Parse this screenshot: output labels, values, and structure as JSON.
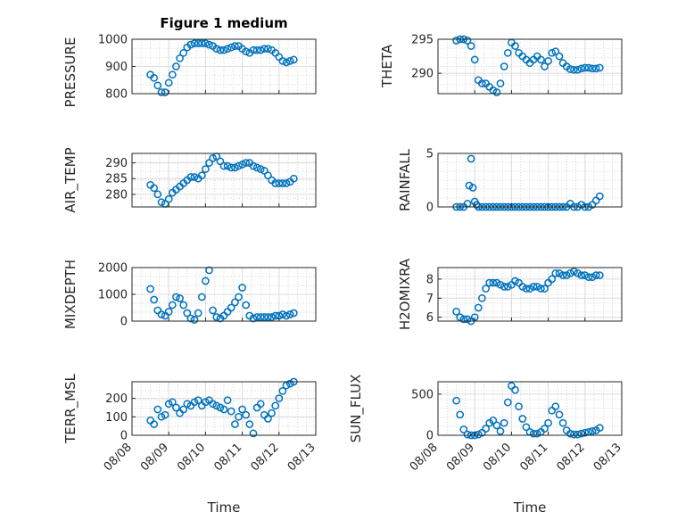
{
  "figure": {
    "title": "Figure 1 medium",
    "xlabel": "Time",
    "x_tick_labels": [
      "08/08",
      "08/09",
      "08/10",
      "08/11",
      "08/12",
      "08/13"
    ],
    "marker_color": "#0072BD"
  },
  "chart_data": [
    {
      "type": "scatter",
      "ylabel": "PRESSURE",
      "ylim": [
        800,
        1000
      ],
      "yticks": [
        800,
        900,
        1000
      ],
      "xlim": [
        0,
        5
      ],
      "grid": true,
      "x": [
        0.5,
        0.6,
        0.7,
        0.8,
        0.9,
        1.0,
        1.1,
        1.2,
        1.3,
        1.4,
        1.5,
        1.6,
        1.7,
        1.8,
        1.9,
        2.0,
        2.1,
        2.2,
        2.3,
        2.4,
        2.5,
        2.6,
        2.7,
        2.8,
        2.9,
        3.0,
        3.1,
        3.2,
        3.3,
        3.4,
        3.5,
        3.6,
        3.7,
        3.8,
        3.9,
        4.0,
        4.1,
        4.2,
        4.3,
        4.4
      ],
      "y": [
        870,
        858,
        830,
        805,
        805,
        840,
        870,
        900,
        930,
        950,
        970,
        980,
        985,
        985,
        985,
        985,
        980,
        975,
        965,
        960,
        960,
        965,
        970,
        975,
        975,
        965,
        955,
        950,
        960,
        960,
        960,
        965,
        965,
        960,
        950,
        935,
        920,
        915,
        920,
        925
      ]
    },
    {
      "type": "scatter",
      "ylabel": "THETA",
      "ylim": [
        287,
        295
      ],
      "yticks": [
        290,
        295
      ],
      "xlim": [
        0,
        5
      ],
      "grid": true,
      "x": [
        0.5,
        0.6,
        0.7,
        0.8,
        0.9,
        1.0,
        1.1,
        1.2,
        1.3,
        1.4,
        1.5,
        1.6,
        1.7,
        1.8,
        1.9,
        2.0,
        2.1,
        2.2,
        2.3,
        2.4,
        2.5,
        2.6,
        2.7,
        2.8,
        2.9,
        3.0,
        3.1,
        3.2,
        3.3,
        3.4,
        3.5,
        3.6,
        3.7,
        3.8,
        3.9,
        4.0,
        4.1,
        4.2,
        4.3,
        4.4
      ],
      "y": [
        294.8,
        295.0,
        295.0,
        294.8,
        294.0,
        292.0,
        289.0,
        288.5,
        288.5,
        288.0,
        287.5,
        287.2,
        288.5,
        291.0,
        293.0,
        294.5,
        294.0,
        293.0,
        292.5,
        292.0,
        291.5,
        292.0,
        292.5,
        292.0,
        291.0,
        291.8,
        293.0,
        293.2,
        292.5,
        291.5,
        291.0,
        290.6,
        290.5,
        290.5,
        290.7,
        290.8,
        290.8,
        290.7,
        290.7,
        290.8
      ]
    },
    {
      "type": "scatter",
      "ylabel": "AIR_TEMP",
      "ylim": [
        276,
        293
      ],
      "yticks": [
        280,
        285,
        290
      ],
      "xlim": [
        0,
        5
      ],
      "grid": true,
      "x": [
        0.5,
        0.6,
        0.7,
        0.8,
        0.9,
        1.0,
        1.1,
        1.2,
        1.3,
        1.4,
        1.5,
        1.6,
        1.7,
        1.8,
        1.9,
        2.0,
        2.1,
        2.2,
        2.3,
        2.4,
        2.5,
        2.6,
        2.7,
        2.8,
        2.9,
        3.0,
        3.1,
        3.2,
        3.3,
        3.4,
        3.5,
        3.6,
        3.7,
        3.8,
        3.9,
        4.0,
        4.1,
        4.2,
        4.3,
        4.4
      ],
      "y": [
        283.0,
        282.0,
        280.0,
        277.5,
        277.0,
        278.5,
        280.5,
        281.5,
        282.5,
        283.5,
        284.5,
        285.5,
        285.5,
        285.0,
        286.0,
        288.0,
        290.0,
        291.5,
        292.0,
        290.5,
        289.0,
        289.0,
        288.5,
        288.5,
        289.0,
        289.5,
        290.0,
        290.0,
        289.0,
        288.5,
        288.0,
        287.5,
        286.0,
        284.5,
        283.5,
        283.5,
        283.5,
        283.5,
        284.0,
        285.0
      ]
    },
    {
      "type": "scatter",
      "ylabel": "RAINFALL",
      "ylim": [
        0,
        5
      ],
      "yticks": [
        0,
        5
      ],
      "xlim": [
        0,
        5
      ],
      "grid": true,
      "x": [
        0.5,
        0.6,
        0.7,
        0.8,
        0.85,
        0.9,
        0.95,
        1.0,
        1.05,
        1.1,
        1.2,
        1.3,
        1.4,
        1.5,
        1.6,
        1.7,
        1.8,
        1.9,
        2.0,
        2.1,
        2.2,
        2.3,
        2.4,
        2.5,
        2.6,
        2.7,
        2.8,
        2.9,
        3.0,
        3.1,
        3.2,
        3.3,
        3.4,
        3.5,
        3.6,
        3.7,
        3.8,
        3.9,
        4.0,
        4.1,
        4.2,
        4.3,
        4.4
      ],
      "y": [
        0.0,
        0.0,
        0.0,
        0.3,
        2.0,
        4.5,
        1.8,
        0.5,
        0.2,
        0.0,
        0.0,
        0.0,
        0.0,
        0.0,
        0.0,
        0.0,
        0.0,
        0.0,
        0.0,
        0.0,
        0.0,
        0.0,
        0.0,
        0.0,
        0.0,
        0.0,
        0.0,
        0.0,
        0.0,
        0.0,
        0.0,
        0.0,
        0.0,
        0.0,
        0.3,
        0.0,
        0.0,
        0.2,
        0.0,
        0.0,
        0.2,
        0.6,
        1.0
      ]
    },
    {
      "type": "scatter",
      "ylabel": "MIXDEPTH",
      "ylim": [
        0,
        2000
      ],
      "yticks": [
        0,
        1000,
        2000
      ],
      "xlim": [
        0,
        5
      ],
      "grid": true,
      "x": [
        0.5,
        0.6,
        0.7,
        0.8,
        0.9,
        1.0,
        1.1,
        1.2,
        1.3,
        1.4,
        1.5,
        1.6,
        1.7,
        1.8,
        1.9,
        2.0,
        2.1,
        2.2,
        2.3,
        2.4,
        2.5,
        2.6,
        2.7,
        2.8,
        2.9,
        3.0,
        3.1,
        3.2,
        3.3,
        3.4,
        3.5,
        3.6,
        3.7,
        3.8,
        3.9,
        4.0,
        4.1,
        4.2,
        4.3,
        4.4
      ],
      "y": [
        1200,
        800,
        400,
        250,
        200,
        350,
        600,
        900,
        850,
        600,
        300,
        100,
        50,
        300,
        900,
        1500,
        1900,
        400,
        150,
        100,
        200,
        350,
        500,
        700,
        900,
        1250,
        600,
        200,
        100,
        150,
        150,
        150,
        150,
        150,
        200,
        200,
        250,
        200,
        250,
        300
      ]
    },
    {
      "type": "scatter",
      "ylabel": "H2OMIXRA",
      "ylim": [
        5.8,
        8.6
      ],
      "yticks": [
        6,
        7,
        8
      ],
      "xlim": [
        0,
        5
      ],
      "grid": true,
      "x": [
        0.5,
        0.6,
        0.7,
        0.8,
        0.9,
        1.0,
        1.1,
        1.2,
        1.3,
        1.4,
        1.5,
        1.6,
        1.7,
        1.8,
        1.9,
        2.0,
        2.1,
        2.2,
        2.3,
        2.4,
        2.5,
        2.6,
        2.7,
        2.8,
        2.9,
        3.0,
        3.1,
        3.2,
        3.3,
        3.4,
        3.5,
        3.6,
        3.7,
        3.8,
        3.9,
        4.0,
        4.1,
        4.2,
        4.3,
        4.4
      ],
      "y": [
        6.3,
        6.0,
        5.9,
        5.9,
        5.8,
        6.0,
        6.5,
        7.0,
        7.5,
        7.8,
        7.8,
        7.8,
        7.7,
        7.6,
        7.6,
        7.7,
        7.9,
        7.8,
        7.6,
        7.5,
        7.5,
        7.6,
        7.6,
        7.5,
        7.5,
        7.8,
        8.0,
        8.3,
        8.3,
        8.2,
        8.2,
        8.3,
        8.4,
        8.3,
        8.2,
        8.2,
        8.1,
        8.1,
        8.2,
        8.2
      ]
    },
    {
      "type": "scatter",
      "ylabel": "TERR_MSL",
      "ylim": [
        0,
        290
      ],
      "yticks": [
        0,
        100,
        200
      ],
      "xlim": [
        0,
        5
      ],
      "grid": true,
      "x": [
        0.5,
        0.6,
        0.7,
        0.8,
        0.9,
        1.0,
        1.1,
        1.2,
        1.3,
        1.4,
        1.5,
        1.6,
        1.7,
        1.8,
        1.9,
        2.0,
        2.1,
        2.2,
        2.3,
        2.4,
        2.5,
        2.6,
        2.7,
        2.8,
        2.9,
        3.0,
        3.1,
        3.2,
        3.3,
        3.4,
        3.5,
        3.6,
        3.7,
        3.8,
        3.9,
        4.0,
        4.1,
        4.2,
        4.3,
        4.4
      ],
      "y": [
        80,
        60,
        140,
        100,
        110,
        170,
        180,
        150,
        120,
        140,
        170,
        160,
        180,
        190,
        160,
        180,
        190,
        170,
        160,
        150,
        140,
        190,
        130,
        60,
        100,
        140,
        110,
        60,
        10,
        150,
        170,
        110,
        90,
        120,
        160,
        200,
        240,
        270,
        280,
        290
      ]
    },
    {
      "type": "scatter",
      "ylabel": "SUN_FLUX",
      "ylim": [
        0,
        650
      ],
      "yticks": [
        0,
        500
      ],
      "xlim": [
        0,
        5
      ],
      "grid": true,
      "x": [
        0.5,
        0.6,
        0.7,
        0.8,
        0.9,
        1.0,
        1.1,
        1.2,
        1.3,
        1.4,
        1.5,
        1.6,
        1.7,
        1.8,
        1.9,
        2.0,
        2.1,
        2.2,
        2.3,
        2.4,
        2.5,
        2.6,
        2.7,
        2.8,
        2.9,
        3.0,
        3.1,
        3.2,
        3.3,
        3.4,
        3.5,
        3.6,
        3.7,
        3.8,
        3.9,
        4.0,
        4.1,
        4.2,
        4.3,
        4.4
      ],
      "y": [
        420,
        250,
        70,
        10,
        0,
        0,
        10,
        30,
        80,
        150,
        180,
        120,
        50,
        150,
        400,
        600,
        550,
        350,
        200,
        100,
        40,
        20,
        20,
        40,
        80,
        150,
        300,
        350,
        250,
        150,
        60,
        20,
        10,
        10,
        20,
        30,
        40,
        50,
        60,
        90
      ]
    }
  ]
}
